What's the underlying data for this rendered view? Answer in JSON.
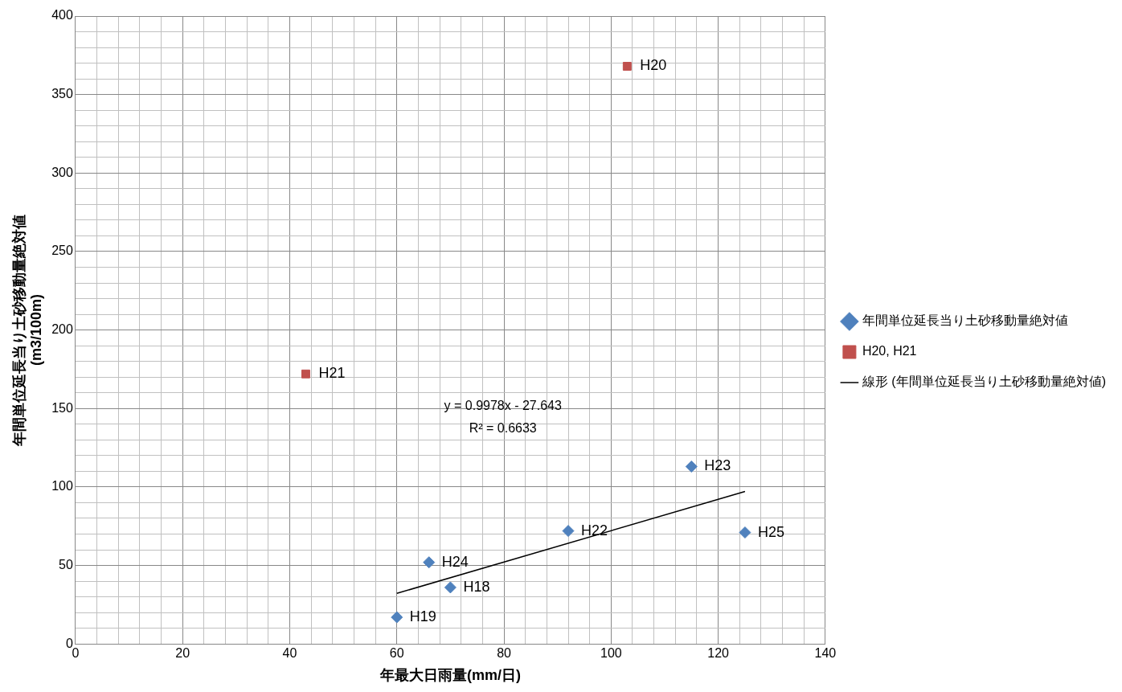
{
  "chart_data": {
    "type": "scatter",
    "xlabel": "年最大日雨量(mm/日)",
    "ylabel": "年間単位延長当り土砂移動量絶対値\n(m3/100m)",
    "xlim": [
      0,
      140
    ],
    "ylim": [
      0,
      400
    ],
    "xticks": [
      0,
      {
        "value": 4,
        "label": null
      },
      {
        "value": 8,
        "label": null
      },
      {
        "value": 12,
        "label": null
      },
      {
        "value": 16,
        "label": null
      },
      20,
      {
        "value": 24,
        "label": null
      },
      {
        "value": 28,
        "label": null
      },
      {
        "value": 32,
        "label": null
      },
      {
        "value": 36,
        "label": null
      },
      40,
      {
        "value": 44,
        "label": null
      },
      {
        "value": 48,
        "label": null
      },
      {
        "value": 52,
        "label": null
      },
      {
        "value": 56,
        "label": null
      },
      60,
      {
        "value": 64,
        "label": null
      },
      {
        "value": 68,
        "label": null
      },
      {
        "value": 72,
        "label": null
      },
      {
        "value": 76,
        "label": null
      },
      80,
      {
        "value": 84,
        "label": null
      },
      {
        "value": 88,
        "label": null
      },
      {
        "value": 92,
        "label": null
      },
      {
        "value": 96,
        "label": null
      },
      100,
      {
        "value": 104,
        "label": null
      },
      {
        "value": 108,
        "label": null
      },
      {
        "value": 112,
        "label": null
      },
      {
        "value": 116,
        "label": null
      },
      120,
      {
        "value": 124,
        "label": null
      },
      {
        "value": 128,
        "label": null
      },
      {
        "value": 132,
        "label": null
      },
      {
        "value": 136,
        "label": null
      },
      140
    ],
    "yticks": [
      0,
      {
        "value": 10,
        "label": null
      },
      {
        "value": 20,
        "label": null
      },
      {
        "value": 30,
        "label": null
      },
      {
        "value": 40,
        "label": null
      },
      50,
      {
        "value": 60,
        "label": null
      },
      {
        "value": 70,
        "label": null
      },
      {
        "value": 80,
        "label": null
      },
      {
        "value": 90,
        "label": null
      },
      100,
      {
        "value": 110,
        "label": null
      },
      {
        "value": 120,
        "label": null
      },
      {
        "value": 130,
        "label": null
      },
      {
        "value": 140,
        "label": null
      },
      150,
      {
        "value": 160,
        "label": null
      },
      {
        "value": 170,
        "label": null
      },
      {
        "value": 180,
        "label": null
      },
      {
        "value": 190,
        "label": null
      },
      200,
      {
        "value": 210,
        "label": null
      },
      {
        "value": 220,
        "label": null
      },
      {
        "value": 230,
        "label": null
      },
      {
        "value": 240,
        "label": null
      },
      250,
      {
        "value": 260,
        "label": null
      },
      {
        "value": 270,
        "label": null
      },
      {
        "value": 280,
        "label": null
      },
      {
        "value": 290,
        "label": null
      },
      300,
      {
        "value": 310,
        "label": null
      },
      {
        "value": 320,
        "label": null
      },
      {
        "value": 330,
        "label": null
      },
      {
        "value": 340,
        "label": null
      },
      350,
      {
        "value": 360,
        "label": null
      },
      {
        "value": 370,
        "label": null
      },
      {
        "value": 380,
        "label": null
      },
      {
        "value": 390,
        "label": null
      },
      400
    ],
    "grid": true,
    "legend": "right",
    "series": [
      {
        "name": "年間単位延長当り土砂移動量絶対値",
        "type": "scatter",
        "marker": "diamond",
        "color": "#4f81bd",
        "x": [
          70,
          60,
          92,
          115,
          66,
          125
        ],
        "values": [
          36,
          17,
          72,
          113,
          52,
          71
        ]
      },
      {
        "name": "H20, H21",
        "type": "scatter",
        "marker": "square",
        "color": "#c0504d",
        "x": [
          103,
          43
        ],
        "values": [
          368,
          172
        ]
      },
      {
        "name": "線形 (年間単位延長当り土砂移動量絶対値)",
        "type": "line",
        "marker": "none",
        "color": "#000000",
        "x": [
          60,
          125
        ],
        "values": [
          32.2,
          97.1
        ]
      }
    ],
    "annotations": [
      {
        "text": "H18",
        "x": 70,
        "y": 36
      },
      {
        "text": "H19",
        "x": 60,
        "y": 17
      },
      {
        "text": "H22",
        "x": 92,
        "y": 72
      },
      {
        "text": "H23",
        "x": 115,
        "y": 113
      },
      {
        "text": "H24",
        "x": 66,
        "y": 52
      },
      {
        "text": "H25",
        "x": 125,
        "y": 71
      },
      {
        "text": "H20",
        "x": 103,
        "y": 368
      },
      {
        "text": "H21",
        "x": 43,
        "y": 172
      },
      "y = 0.9978x - 27.643",
      "R² = 0.6633"
    ]
  }
}
